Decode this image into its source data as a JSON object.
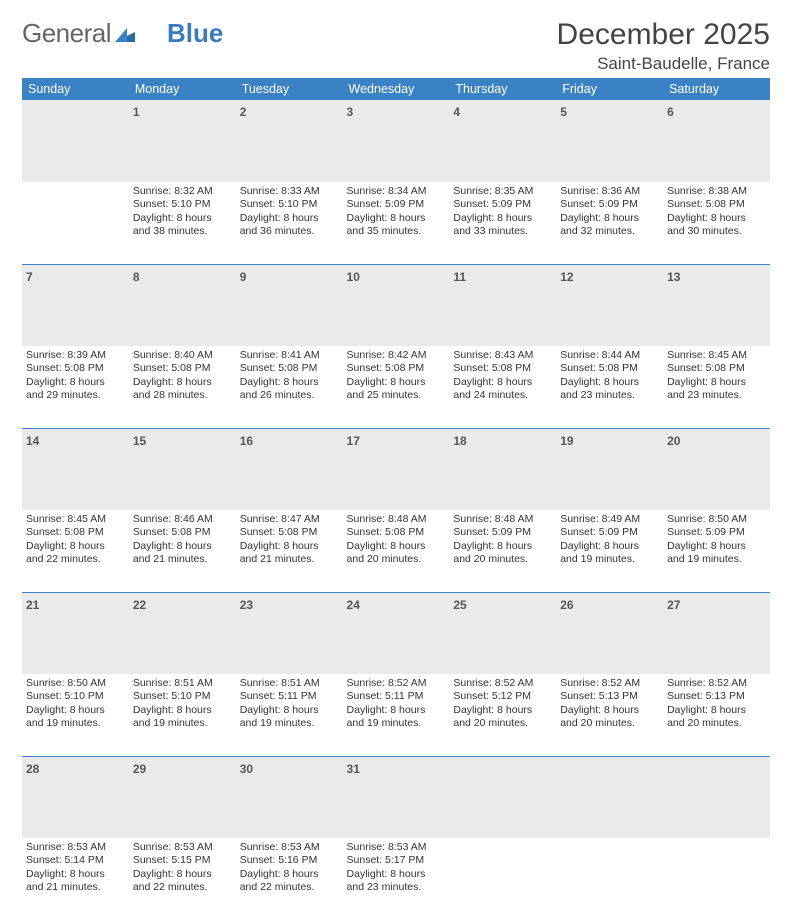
{
  "brand": {
    "general": "General",
    "blue": "Blue"
  },
  "title": "December 2025",
  "location": "Saint-Baudelle, France",
  "colors": {
    "header_bg": "#3a82c4",
    "daynum_bg": "#e9eaeb",
    "rule": "#3a82c4"
  },
  "weekdays": [
    "Sunday",
    "Monday",
    "Tuesday",
    "Wednesday",
    "Thursday",
    "Friday",
    "Saturday"
  ],
  "weeks": [
    {
      "nums": [
        "",
        "1",
        "2",
        "3",
        "4",
        "5",
        "6"
      ],
      "cells": [
        null,
        {
          "sunrise": "Sunrise: 8:32 AM",
          "sunset": "Sunset: 5:10 PM",
          "day1": "Daylight: 8 hours",
          "day2": "and 38 minutes."
        },
        {
          "sunrise": "Sunrise: 8:33 AM",
          "sunset": "Sunset: 5:10 PM",
          "day1": "Daylight: 8 hours",
          "day2": "and 36 minutes."
        },
        {
          "sunrise": "Sunrise: 8:34 AM",
          "sunset": "Sunset: 5:09 PM",
          "day1": "Daylight: 8 hours",
          "day2": "and 35 minutes."
        },
        {
          "sunrise": "Sunrise: 8:35 AM",
          "sunset": "Sunset: 5:09 PM",
          "day1": "Daylight: 8 hours",
          "day2": "and 33 minutes."
        },
        {
          "sunrise": "Sunrise: 8:36 AM",
          "sunset": "Sunset: 5:09 PM",
          "day1": "Daylight: 8 hours",
          "day2": "and 32 minutes."
        },
        {
          "sunrise": "Sunrise: 8:38 AM",
          "sunset": "Sunset: 5:08 PM",
          "day1": "Daylight: 8 hours",
          "day2": "and 30 minutes."
        }
      ]
    },
    {
      "nums": [
        "7",
        "8",
        "9",
        "10",
        "11",
        "12",
        "13"
      ],
      "cells": [
        {
          "sunrise": "Sunrise: 8:39 AM",
          "sunset": "Sunset: 5:08 PM",
          "day1": "Daylight: 8 hours",
          "day2": "and 29 minutes."
        },
        {
          "sunrise": "Sunrise: 8:40 AM",
          "sunset": "Sunset: 5:08 PM",
          "day1": "Daylight: 8 hours",
          "day2": "and 28 minutes."
        },
        {
          "sunrise": "Sunrise: 8:41 AM",
          "sunset": "Sunset: 5:08 PM",
          "day1": "Daylight: 8 hours",
          "day2": "and 26 minutes."
        },
        {
          "sunrise": "Sunrise: 8:42 AM",
          "sunset": "Sunset: 5:08 PM",
          "day1": "Daylight: 8 hours",
          "day2": "and 25 minutes."
        },
        {
          "sunrise": "Sunrise: 8:43 AM",
          "sunset": "Sunset: 5:08 PM",
          "day1": "Daylight: 8 hours",
          "day2": "and 24 minutes."
        },
        {
          "sunrise": "Sunrise: 8:44 AM",
          "sunset": "Sunset: 5:08 PM",
          "day1": "Daylight: 8 hours",
          "day2": "and 23 minutes."
        },
        {
          "sunrise": "Sunrise: 8:45 AM",
          "sunset": "Sunset: 5:08 PM",
          "day1": "Daylight: 8 hours",
          "day2": "and 23 minutes."
        }
      ]
    },
    {
      "nums": [
        "14",
        "15",
        "16",
        "17",
        "18",
        "19",
        "20"
      ],
      "cells": [
        {
          "sunrise": "Sunrise: 8:45 AM",
          "sunset": "Sunset: 5:08 PM",
          "day1": "Daylight: 8 hours",
          "day2": "and 22 minutes."
        },
        {
          "sunrise": "Sunrise: 8:46 AM",
          "sunset": "Sunset: 5:08 PM",
          "day1": "Daylight: 8 hours",
          "day2": "and 21 minutes."
        },
        {
          "sunrise": "Sunrise: 8:47 AM",
          "sunset": "Sunset: 5:08 PM",
          "day1": "Daylight: 8 hours",
          "day2": "and 21 minutes."
        },
        {
          "sunrise": "Sunrise: 8:48 AM",
          "sunset": "Sunset: 5:08 PM",
          "day1": "Daylight: 8 hours",
          "day2": "and 20 minutes."
        },
        {
          "sunrise": "Sunrise: 8:48 AM",
          "sunset": "Sunset: 5:09 PM",
          "day1": "Daylight: 8 hours",
          "day2": "and 20 minutes."
        },
        {
          "sunrise": "Sunrise: 8:49 AM",
          "sunset": "Sunset: 5:09 PM",
          "day1": "Daylight: 8 hours",
          "day2": "and 19 minutes."
        },
        {
          "sunrise": "Sunrise: 8:50 AM",
          "sunset": "Sunset: 5:09 PM",
          "day1": "Daylight: 8 hours",
          "day2": "and 19 minutes."
        }
      ]
    },
    {
      "nums": [
        "21",
        "22",
        "23",
        "24",
        "25",
        "26",
        "27"
      ],
      "cells": [
        {
          "sunrise": "Sunrise: 8:50 AM",
          "sunset": "Sunset: 5:10 PM",
          "day1": "Daylight: 8 hours",
          "day2": "and 19 minutes."
        },
        {
          "sunrise": "Sunrise: 8:51 AM",
          "sunset": "Sunset: 5:10 PM",
          "day1": "Daylight: 8 hours",
          "day2": "and 19 minutes."
        },
        {
          "sunrise": "Sunrise: 8:51 AM",
          "sunset": "Sunset: 5:11 PM",
          "day1": "Daylight: 8 hours",
          "day2": "and 19 minutes."
        },
        {
          "sunrise": "Sunrise: 8:52 AM",
          "sunset": "Sunset: 5:11 PM",
          "day1": "Daylight: 8 hours",
          "day2": "and 19 minutes."
        },
        {
          "sunrise": "Sunrise: 8:52 AM",
          "sunset": "Sunset: 5:12 PM",
          "day1": "Daylight: 8 hours",
          "day2": "and 20 minutes."
        },
        {
          "sunrise": "Sunrise: 8:52 AM",
          "sunset": "Sunset: 5:13 PM",
          "day1": "Daylight: 8 hours",
          "day2": "and 20 minutes."
        },
        {
          "sunrise": "Sunrise: 8:52 AM",
          "sunset": "Sunset: 5:13 PM",
          "day1": "Daylight: 8 hours",
          "day2": "and 20 minutes."
        }
      ]
    },
    {
      "nums": [
        "28",
        "29",
        "30",
        "31",
        "",
        "",
        ""
      ],
      "cells": [
        {
          "sunrise": "Sunrise: 8:53 AM",
          "sunset": "Sunset: 5:14 PM",
          "day1": "Daylight: 8 hours",
          "day2": "and 21 minutes."
        },
        {
          "sunrise": "Sunrise: 8:53 AM",
          "sunset": "Sunset: 5:15 PM",
          "day1": "Daylight: 8 hours",
          "day2": "and 22 minutes."
        },
        {
          "sunrise": "Sunrise: 8:53 AM",
          "sunset": "Sunset: 5:16 PM",
          "day1": "Daylight: 8 hours",
          "day2": "and 22 minutes."
        },
        {
          "sunrise": "Sunrise: 8:53 AM",
          "sunset": "Sunset: 5:17 PM",
          "day1": "Daylight: 8 hours",
          "day2": "and 23 minutes."
        },
        null,
        null,
        null
      ]
    }
  ]
}
